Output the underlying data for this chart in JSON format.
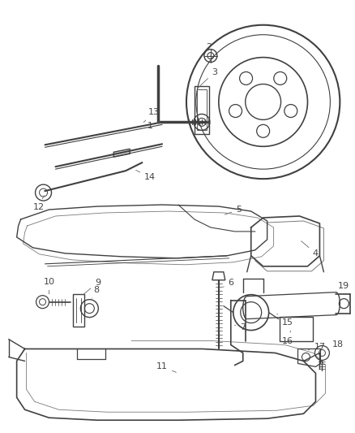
{
  "background_color": "#ffffff",
  "line_color": "#404040",
  "label_color": "#404040",
  "fig_width": 4.38,
  "fig_height": 5.33,
  "dpi": 100
}
